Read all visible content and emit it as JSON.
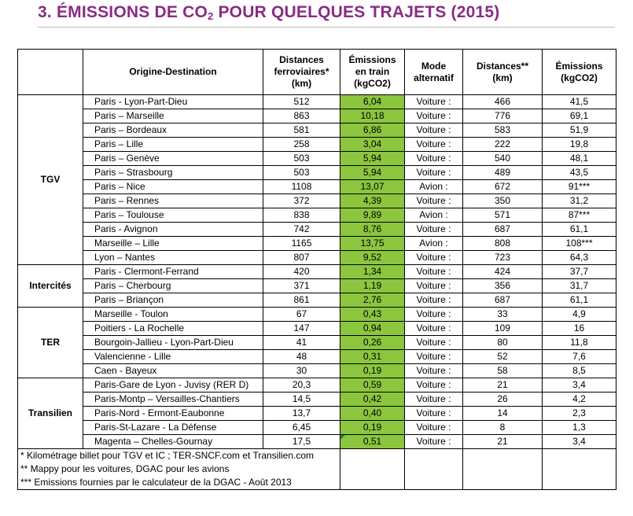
{
  "title": {
    "prefix": "3.  ÉMISSIONS DE CO",
    "sub": "2",
    "suffix": " POUR QUELQUES TRAJETS (2015)"
  },
  "headers": {
    "od": "Origine-Destination",
    "dist": "Distances ferroviaires* (km)",
    "em_train": "Émissions en train (kgCO2)",
    "mode": "Mode alternatif",
    "dist2": "Distances** (km)",
    "em2": "Émissions (kgCO2)"
  },
  "categories": [
    "TGV",
    "Intercités",
    "TER",
    "Transilien"
  ],
  "rows": [
    {
      "od": "Paris - Lyon-Part-Dieu",
      "d": "512",
      "e": "6,04",
      "m": "Voiture :",
      "d2": "466",
      "e2": "41,5"
    },
    {
      "od": "Paris – Marseille",
      "d": "863",
      "e": "10,18",
      "m": "Voiture :",
      "d2": "776",
      "e2": "69,1"
    },
    {
      "od": "Paris – Bordeaux",
      "d": "581",
      "e": "6,86",
      "m": "Voiture :",
      "d2": "583",
      "e2": "51,9"
    },
    {
      "od": "Paris – Lille",
      "d": "258",
      "e": "3,04",
      "m": "Voiture :",
      "d2": "222",
      "e2": "19,8"
    },
    {
      "od": "Paris – Genève",
      "d": "503",
      "e": "5,94",
      "m": "Voiture :",
      "d2": "540",
      "e2": "48,1"
    },
    {
      "od": "Paris – Strasbourg",
      "d": "503",
      "e": "5,94",
      "m": "Voiture :",
      "d2": "489",
      "e2": "43,5"
    },
    {
      "od": "Paris – Nice",
      "d": "1108",
      "e": "13,07",
      "m": "Avion :",
      "d2": "672",
      "e2": "91***"
    },
    {
      "od": "Paris – Rennes",
      "d": "372",
      "e": "4,39",
      "m": "Voiture :",
      "d2": "350",
      "e2": "31,2"
    },
    {
      "od": "Paris – Toulouse",
      "d": "838",
      "e": "9,89",
      "m": "Avion :",
      "d2": "571",
      "e2": "87***"
    },
    {
      "od": "Paris - Avignon",
      "d": "742",
      "e": "8,76",
      "m": "Voiture :",
      "d2": "687",
      "e2": "61,1"
    },
    {
      "od": "Marseille – Lille",
      "d": "1165",
      "e": "13,75",
      "m": "Avion :",
      "d2": "808",
      "e2": "108***"
    },
    {
      "od": "Lyon – Nantes",
      "d": "807",
      "e": "9,52",
      "m": "Voiture :",
      "d2": "723",
      "e2": "64,3"
    },
    {
      "od": "Paris - Clermont-Ferrand",
      "d": "420",
      "e": "1,34",
      "m": "Voiture :",
      "d2": "424",
      "e2": "37,7"
    },
    {
      "od": "Paris – Cherbourg",
      "d": "371",
      "e": "1,19",
      "m": "Voiture :",
      "d2": "356",
      "e2": "31,7"
    },
    {
      "od": "Paris – Briançon",
      "d": "861",
      "e": "2,76",
      "m": "Voiture :",
      "d2": "687",
      "e2": "61,1"
    },
    {
      "od": "Marseille - Toulon",
      "d": "67",
      "e": "0,43",
      "m": "Voiture :",
      "d2": "33",
      "e2": "4,9"
    },
    {
      "od": "Poitiers - La Rochelle",
      "d": "147",
      "e": "0,94",
      "m": "Voiture :",
      "d2": "109",
      "e2": "16"
    },
    {
      "od": "Bourgoin-Jallieu - Lyon-Part-Dieu",
      "d": "41",
      "e": "0,26",
      "m": "Voiture :",
      "d2": "80",
      "e2": "11,8"
    },
    {
      "od": "Valencienne - Lille",
      "d": "48",
      "e": "0,31",
      "m": "Voiture :",
      "d2": "52",
      "e2": "7,6"
    },
    {
      "od": "Caen - Bayeux",
      "d": "30",
      "e": "0,19",
      "m": "Voiture :",
      "d2": "58",
      "e2": "8,5"
    },
    {
      "od": "Paris-Gare de Lyon - Juvisy (RER D)",
      "d": "20,3",
      "e": "0,59",
      "m": "Voiture :",
      "d2": "21",
      "e2": "3,4"
    },
    {
      "od": "Paris-Montp – Versailles-Chantiers",
      "d": "14,5",
      "e": "0,42",
      "m": "Voiture :",
      "d2": "26",
      "e2": "4,2"
    },
    {
      "od": "Paris-Nord - Ermont-Eaubonne",
      "d": "13,7",
      "e": "0,40",
      "m": "Voiture :",
      "d2": "14",
      "e2": "2,3"
    },
    {
      "od": "Paris-St-Lazare - La Défense",
      "d": "6,45",
      "e": "0,19",
      "m": "Voiture :",
      "d2": "8",
      "e2": "1,3"
    },
    {
      "od": "Magenta – Chelles-Gournay",
      "d": "17,5",
      "e": "0,51",
      "m": "Voiture :",
      "d2": "21",
      "e2": "3,4"
    }
  ],
  "footnotes": [
    "* Kilométrage billet pour TGV et IC ; TER-SNCF.com et Transilien.com",
    "** Mappy pour les voitures, DGAC pour les avions",
    "*** Emissions fournies par le calculateur de la DGAC - Août 2013"
  ]
}
